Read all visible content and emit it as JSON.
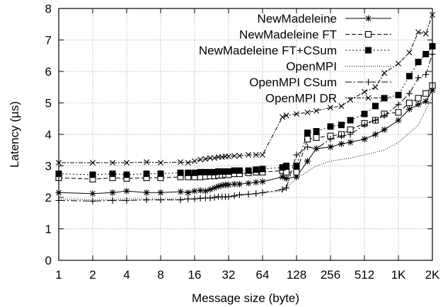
{
  "chart_data": {
    "type": "line",
    "title": "",
    "xlabel": "Message size (byte)",
    "ylabel": "Latency (µs)",
    "x_scale": "log2",
    "xlim": [
      1,
      2048
    ],
    "ylim": [
      0,
      8
    ],
    "x_ticks": [
      1,
      2,
      4,
      8,
      16,
      32,
      64,
      128,
      256,
      512,
      1024,
      2048
    ],
    "x_tick_labels": [
      "1",
      "2",
      "4",
      "8",
      "16",
      "32",
      "64",
      "128",
      "256",
      "512",
      "1K",
      "2K"
    ],
    "y_ticks": [
      0,
      1,
      2,
      3,
      4,
      5,
      6,
      7,
      8
    ],
    "y_tick_labels": [
      "0",
      "1",
      "2",
      "3",
      "4",
      "5",
      "6",
      "7",
      "8"
    ],
    "grid": true,
    "legend_position": "top-right",
    "series": [
      {
        "name": "NewMadeleine",
        "color": "#000000",
        "marker": "asterisk",
        "dash": "",
        "points": [
          [
            1,
            2.15
          ],
          [
            2,
            2.12
          ],
          [
            3,
            2.15
          ],
          [
            4,
            2.2
          ],
          [
            6,
            2.15
          ],
          [
            8,
            2.15
          ],
          [
            12,
            2.18
          ],
          [
            14,
            2.15
          ],
          [
            16,
            2.2
          ],
          [
            18,
            2.22
          ],
          [
            20,
            2.2
          ],
          [
            22,
            2.25
          ],
          [
            24,
            2.3
          ],
          [
            26,
            2.35
          ],
          [
            28,
            2.38
          ],
          [
            30,
            2.4
          ],
          [
            32,
            2.4
          ],
          [
            36,
            2.42
          ],
          [
            40,
            2.42
          ],
          [
            48,
            2.45
          ],
          [
            56,
            2.48
          ],
          [
            64,
            2.5
          ],
          [
            96,
            2.65
          ],
          [
            104,
            2.6
          ],
          [
            128,
            2.65
          ],
          [
            160,
            3.15
          ],
          [
            192,
            3.55
          ],
          [
            256,
            3.6
          ],
          [
            320,
            3.7
          ],
          [
            384,
            3.75
          ],
          [
            512,
            3.85
          ],
          [
            640,
            4.0
          ],
          [
            768,
            4.15
          ],
          [
            1024,
            4.45
          ],
          [
            1280,
            4.8
          ],
          [
            1536,
            4.95
          ],
          [
            1792,
            5.05
          ],
          [
            2048,
            5.4
          ]
        ]
      },
      {
        "name": "NewMadeleine FT",
        "color": "#000000",
        "marker": "open-square",
        "dash": "6,3",
        "points": [
          [
            1,
            2.62
          ],
          [
            2,
            2.58
          ],
          [
            3,
            2.62
          ],
          [
            4,
            2.6
          ],
          [
            6,
            2.62
          ],
          [
            8,
            2.62
          ],
          [
            12,
            2.65
          ],
          [
            14,
            2.65
          ],
          [
            16,
            2.65
          ],
          [
            18,
            2.65
          ],
          [
            20,
            2.67
          ],
          [
            22,
            2.68
          ],
          [
            24,
            2.68
          ],
          [
            26,
            2.7
          ],
          [
            28,
            2.7
          ],
          [
            30,
            2.72
          ],
          [
            32,
            2.72
          ],
          [
            36,
            2.75
          ],
          [
            40,
            2.75
          ],
          [
            48,
            2.78
          ],
          [
            56,
            2.8
          ],
          [
            64,
            2.8
          ],
          [
            96,
            2.85
          ],
          [
            104,
            2.8
          ],
          [
            128,
            2.8
          ],
          [
            160,
            3.85
          ],
          [
            192,
            3.9
          ],
          [
            256,
            3.95
          ],
          [
            320,
            4.0
          ],
          [
            384,
            4.15
          ],
          [
            512,
            4.35
          ],
          [
            640,
            4.45
          ],
          [
            768,
            4.65
          ],
          [
            1024,
            4.7
          ],
          [
            1280,
            5.0
          ],
          [
            1536,
            5.15
          ],
          [
            1792,
            5.3
          ],
          [
            2048,
            5.55
          ]
        ]
      },
      {
        "name": "NewMadeleine FT+CSum",
        "color": "#000000",
        "marker": "filled-square",
        "dash": "2,3",
        "points": [
          [
            1,
            2.75
          ],
          [
            2,
            2.72
          ],
          [
            3,
            2.75
          ],
          [
            4,
            2.72
          ],
          [
            6,
            2.75
          ],
          [
            8,
            2.75
          ],
          [
            12,
            2.78
          ],
          [
            14,
            2.78
          ],
          [
            16,
            2.78
          ],
          [
            18,
            2.8
          ],
          [
            20,
            2.8
          ],
          [
            22,
            2.8
          ],
          [
            24,
            2.8
          ],
          [
            26,
            2.82
          ],
          [
            28,
            2.82
          ],
          [
            30,
            2.82
          ],
          [
            32,
            2.82
          ],
          [
            36,
            2.85
          ],
          [
            40,
            2.85
          ],
          [
            48,
            2.85
          ],
          [
            56,
            2.88
          ],
          [
            64,
            2.9
          ],
          [
            96,
            2.95
          ],
          [
            104,
            3.0
          ],
          [
            128,
            3.0
          ],
          [
            160,
            4.05
          ],
          [
            192,
            4.1
          ],
          [
            256,
            4.25
          ],
          [
            320,
            4.3
          ],
          [
            384,
            4.45
          ],
          [
            512,
            4.65
          ],
          [
            640,
            4.9
          ],
          [
            768,
            5.15
          ],
          [
            1024,
            5.25
          ],
          [
            1280,
            5.85
          ],
          [
            1536,
            6.3
          ],
          [
            1792,
            6.55
          ],
          [
            2048,
            6.8
          ]
        ]
      },
      {
        "name": "OpenMPI",
        "color": "#000000",
        "marker": "none",
        "dash": "1,2",
        "points": [
          [
            1,
            1.95
          ],
          [
            2,
            1.92
          ],
          [
            4,
            1.95
          ],
          [
            8,
            1.95
          ],
          [
            16,
            1.95
          ],
          [
            32,
            2.0
          ],
          [
            40,
            2.05
          ],
          [
            48,
            2.1
          ],
          [
            64,
            2.15
          ],
          [
            96,
            2.2
          ],
          [
            128,
            2.6
          ],
          [
            192,
            3.0
          ],
          [
            256,
            3.15
          ],
          [
            384,
            3.25
          ],
          [
            512,
            3.35
          ],
          [
            768,
            3.5
          ],
          [
            1024,
            3.75
          ],
          [
            1536,
            4.3
          ],
          [
            2048,
            5.2
          ]
        ]
      },
      {
        "name": "OpenMPI CSum",
        "color": "#000000",
        "marker": "plus",
        "dash": "9,3,2,3",
        "points": [
          [
            1,
            1.9
          ],
          [
            2,
            1.88
          ],
          [
            3,
            1.9
          ],
          [
            4,
            1.9
          ],
          [
            6,
            1.92
          ],
          [
            8,
            1.92
          ],
          [
            12,
            1.92
          ],
          [
            14,
            1.95
          ],
          [
            16,
            1.95
          ],
          [
            18,
            1.97
          ],
          [
            20,
            1.98
          ],
          [
            22,
            1.98
          ],
          [
            24,
            2.0
          ],
          [
            26,
            2.02
          ],
          [
            28,
            2.02
          ],
          [
            30,
            2.02
          ],
          [
            32,
            2.02
          ],
          [
            36,
            2.05
          ],
          [
            40,
            2.08
          ],
          [
            48,
            2.1
          ],
          [
            56,
            2.12
          ],
          [
            64,
            2.15
          ],
          [
            96,
            2.25
          ],
          [
            104,
            2.3
          ],
          [
            128,
            3.35
          ],
          [
            160,
            3.6
          ],
          [
            192,
            3.55
          ],
          [
            256,
            3.85
          ],
          [
            320,
            3.95
          ],
          [
            384,
            4.0
          ],
          [
            512,
            4.3
          ],
          [
            640,
            4.45
          ],
          [
            768,
            4.6
          ],
          [
            1024,
            4.95
          ],
          [
            1280,
            5.3
          ],
          [
            1536,
            5.8
          ],
          [
            1792,
            5.9
          ],
          [
            2048,
            6.55
          ]
        ]
      },
      {
        "name": "OpenMPI DR",
        "color": "#000000",
        "marker": "cross",
        "dash": "2,2,6,2",
        "points": [
          [
            1,
            3.1
          ],
          [
            2,
            3.1
          ],
          [
            3,
            3.1
          ],
          [
            4,
            3.1
          ],
          [
            6,
            3.12
          ],
          [
            8,
            3.1
          ],
          [
            12,
            3.12
          ],
          [
            14,
            3.1
          ],
          [
            16,
            3.15
          ],
          [
            18,
            3.2
          ],
          [
            20,
            3.22
          ],
          [
            22,
            3.25
          ],
          [
            24,
            3.25
          ],
          [
            26,
            3.28
          ],
          [
            28,
            3.28
          ],
          [
            30,
            3.3
          ],
          [
            32,
            3.3
          ],
          [
            36,
            3.32
          ],
          [
            40,
            3.32
          ],
          [
            48,
            3.35
          ],
          [
            56,
            3.35
          ],
          [
            64,
            3.35
          ],
          [
            96,
            4.55
          ],
          [
            104,
            4.6
          ],
          [
            128,
            4.65
          ],
          [
            160,
            4.7
          ],
          [
            192,
            4.75
          ],
          [
            256,
            4.85
          ],
          [
            320,
            4.9
          ],
          [
            384,
            5.1
          ],
          [
            512,
            5.35
          ],
          [
            640,
            5.5
          ],
          [
            768,
            5.95
          ],
          [
            1024,
            6.25
          ],
          [
            1280,
            6.6
          ],
          [
            1536,
            7.25
          ],
          [
            1792,
            7.2
          ],
          [
            2048,
            7.8
          ]
        ]
      }
    ]
  }
}
